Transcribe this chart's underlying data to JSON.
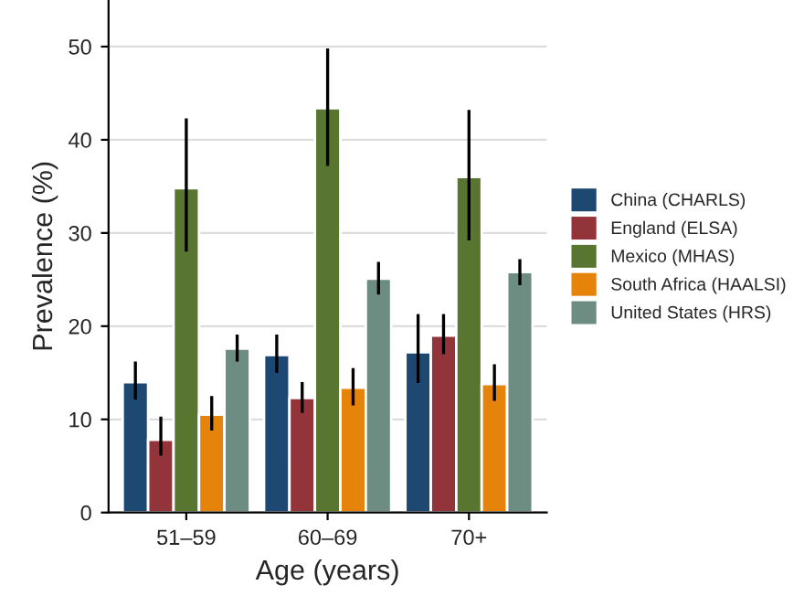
{
  "chart_data": {
    "type": "bar",
    "xlabel": "Age (years)",
    "ylabel": "Prevalence (%)",
    "categories": [
      "51–59",
      "60–69",
      "70+"
    ],
    "series": [
      {
        "name": "China (CHARLS)",
        "color": "#1d4871",
        "values": [
          14.0,
          16.9,
          17.2
        ],
        "errors": [
          [
            12.1,
            16.2
          ],
          [
            15.0,
            19.1
          ],
          [
            13.9,
            21.3
          ]
        ]
      },
      {
        "name": "England (ELSA)",
        "color": "#923439",
        "values": [
          7.8,
          12.3,
          19.0
        ],
        "errors": [
          [
            6.1,
            10.3
          ],
          [
            10.7,
            14.0
          ],
          [
            17.0,
            21.3
          ]
        ]
      },
      {
        "name": "Mexico (MHAS)",
        "color": "#587630",
        "values": [
          34.8,
          43.4,
          36.0
        ],
        "errors": [
          [
            28.0,
            42.3
          ],
          [
            37.2,
            49.8
          ],
          [
            29.2,
            43.2
          ]
        ]
      },
      {
        "name": "South Africa (HAALSI)",
        "color": "#e5830a",
        "values": [
          10.5,
          13.4,
          13.8
        ],
        "errors": [
          [
            8.8,
            12.5
          ],
          [
            11.5,
            15.5
          ],
          [
            12.0,
            15.9
          ]
        ]
      },
      {
        "name": "United States (HRS)",
        "color": "#6d8d82",
        "values": [
          17.6,
          25.1,
          25.8
        ],
        "errors": [
          [
            16.2,
            19.1
          ],
          [
            23.4,
            26.9
          ],
          [
            24.4,
            27.2
          ]
        ]
      }
    ],
    "ylim": [
      0,
      55
    ],
    "yticks": [
      0,
      10,
      20,
      30,
      40,
      50
    ],
    "grid": "y",
    "legend": "right"
  }
}
